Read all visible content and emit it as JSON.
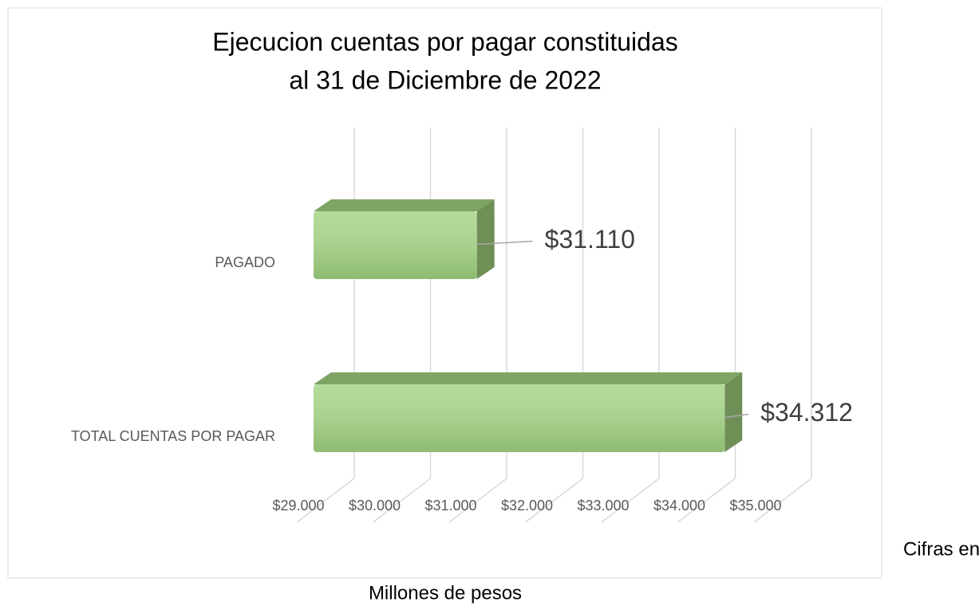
{
  "chart_data": {
    "type": "bar3d_horizontal",
    "title": [
      "Ejecucion cuentas por pagar constituidas",
      "al 31 de Diciembre de 2022"
    ],
    "categories": [
      "PAGADO",
      "TOTAL CUENTAS POR PAGAR"
    ],
    "values": [
      31110,
      34312
    ],
    "value_labels": [
      "$31.110",
      "$34.312"
    ],
    "color": "#a9d18e",
    "xlim": [
      29000,
      35000
    ],
    "xticks": [
      {
        "value": 29000,
        "label": "$29.000"
      },
      {
        "value": 30000,
        "label": "$30.000"
      },
      {
        "value": 31000,
        "label": "$31.000"
      },
      {
        "value": 32000,
        "label": "$32.000"
      },
      {
        "value": 33000,
        "label": "$33.000"
      },
      {
        "value": 34000,
        "label": "$34.000"
      },
      {
        "value": 35000,
        "label": "$35.000"
      }
    ],
    "grid": true,
    "note": [
      "Cifras en",
      "Millones de pesos"
    ]
  }
}
